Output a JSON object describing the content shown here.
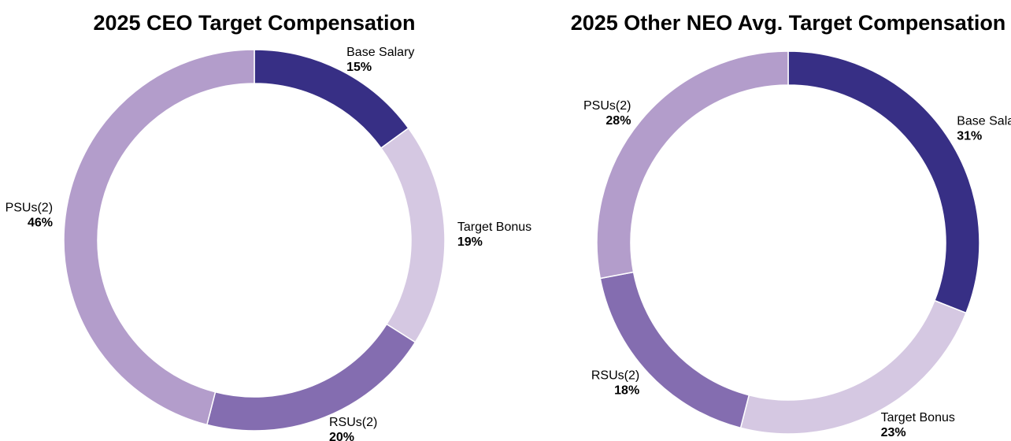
{
  "chart_data": [
    {
      "type": "pie",
      "title": "2025 CEO Target Compensation",
      "categories": [
        "Base Salary",
        "Target Bonus",
        "RSUs(2)",
        "PSUs(2)"
      ],
      "values": [
        15,
        19,
        20,
        46
      ],
      "value_labels": [
        "15%",
        "19%",
        "20%",
        "46%"
      ],
      "colors": [
        "#372f85",
        "#d5c8e2",
        "#846db0",
        "#b39dcb"
      ]
    },
    {
      "type": "pie",
      "title": "2025 Other NEO Avg. Target Compensation",
      "categories": [
        "Base Salary",
        "Target Bonus",
        "RSUs(2)",
        "PSUs(2)"
      ],
      "values": [
        31,
        23,
        18,
        28
      ],
      "value_labels": [
        "31%",
        "23%",
        "18%",
        "28%"
      ],
      "colors": [
        "#372f85",
        "#d5c8e2",
        "#846db0",
        "#b39dcb"
      ]
    }
  ]
}
